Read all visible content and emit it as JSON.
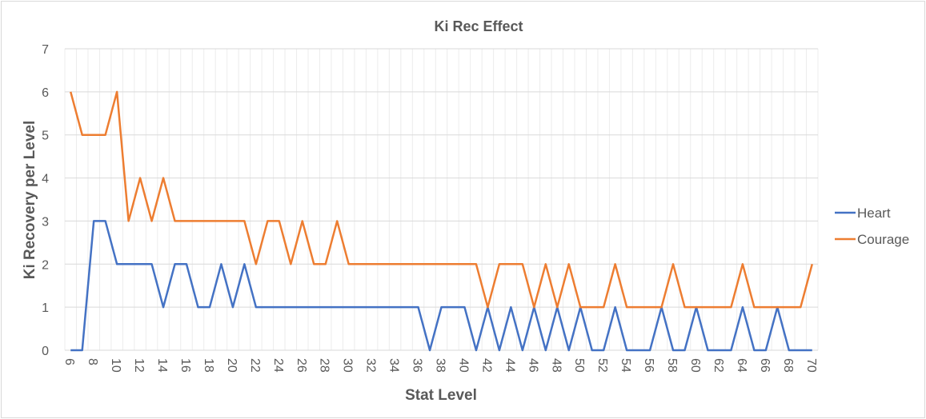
{
  "chart_data": {
    "type": "line",
    "title": "Ki Rec Effect",
    "xlabel": "Stat Level",
    "ylabel": "Ki Recovery per Level",
    "x": [
      6,
      7,
      8,
      9,
      10,
      11,
      12,
      13,
      14,
      15,
      16,
      17,
      18,
      19,
      20,
      21,
      22,
      23,
      24,
      25,
      26,
      27,
      28,
      29,
      30,
      31,
      32,
      33,
      34,
      35,
      36,
      37,
      38,
      39,
      40,
      41,
      42,
      43,
      44,
      45,
      46,
      47,
      48,
      49,
      50,
      51,
      52,
      53,
      54,
      55,
      56,
      57,
      58,
      59,
      60,
      61,
      62,
      63,
      64,
      65,
      66,
      67,
      68,
      69,
      70
    ],
    "xticks": [
      6,
      8,
      10,
      12,
      14,
      16,
      18,
      20,
      22,
      24,
      26,
      28,
      30,
      32,
      34,
      36,
      38,
      40,
      42,
      44,
      46,
      48,
      50,
      52,
      54,
      56,
      58,
      60,
      62,
      64,
      66,
      68,
      70
    ],
    "ylim": [
      0,
      7
    ],
    "yticks": [
      0,
      1,
      2,
      3,
      4,
      5,
      6,
      7
    ],
    "grid": true,
    "legend_position": "right",
    "series": [
      {
        "name": "Heart",
        "color": "#4472c4",
        "values": [
          0,
          0,
          3,
          3,
          2,
          2,
          2,
          2,
          1,
          2,
          2,
          1,
          1,
          2,
          1,
          2,
          1,
          1,
          1,
          1,
          1,
          1,
          1,
          1,
          1,
          1,
          1,
          1,
          1,
          1,
          1,
          0,
          1,
          1,
          1,
          0,
          1,
          0,
          1,
          0,
          1,
          0,
          1,
          0,
          1,
          0,
          0,
          1,
          0,
          0,
          0,
          1,
          0,
          0,
          1,
          0,
          0,
          0,
          1,
          0,
          0,
          1,
          0,
          0,
          0
        ]
      },
      {
        "name": "Courage",
        "color": "#ed7d31",
        "values": [
          6,
          5,
          5,
          5,
          6,
          3,
          4,
          3,
          4,
          3,
          3,
          3,
          3,
          3,
          3,
          3,
          2,
          3,
          3,
          2,
          3,
          2,
          2,
          3,
          2,
          2,
          2,
          2,
          2,
          2,
          2,
          2,
          2,
          2,
          2,
          2,
          1,
          2,
          2,
          2,
          1,
          2,
          1,
          2,
          1,
          1,
          1,
          2,
          1,
          1,
          1,
          1,
          2,
          1,
          1,
          1,
          1,
          1,
          2,
          1,
          1,
          1,
          1,
          1,
          2
        ]
      }
    ]
  }
}
